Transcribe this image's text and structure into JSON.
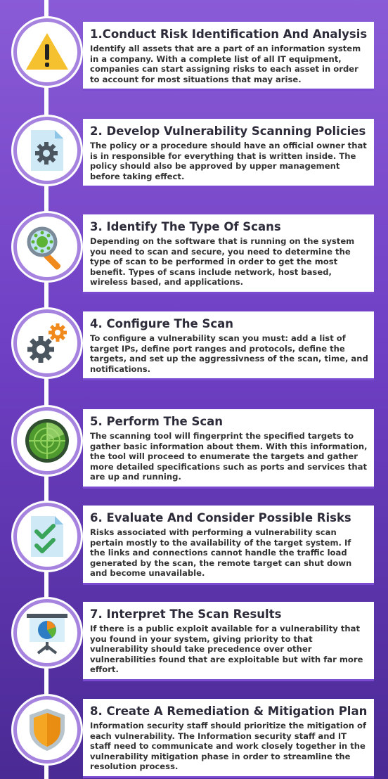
{
  "steps": [
    {
      "title": "1.Conduct Risk Identification And Analysis",
      "body": "Identify all assets that are a part of an information system in a company. With a complete list of all IT equipment, companies can start assigning risks to each asset in order to account for most situations that may arise.",
      "icon": "warning-icon"
    },
    {
      "title": "2. Develop Vulnerability Scanning Policies",
      "body": "The policy or a procedure should have an official owner that is in responsible for everything that is written inside. The policy should also be approved by upper management before taking effect.",
      "icon": "document-gear-icon"
    },
    {
      "title": "3. Identify The Type Of Scans",
      "body": "Depending on the software that is running on the system you need to scan and secure, you need to determine the type of scan to be performed in order to get the most benefit. Types of scans include network, host based, wireless based, and applications.",
      "icon": "magnifier-virus-icon"
    },
    {
      "title": "4. Configure The Scan",
      "body": "To configure a vulnerability scan you must: add a list of target IPs, define port ranges and protocols, define the targets, and set up the aggressivness of the scan, time, and notifications.",
      "icon": "gears-icon"
    },
    {
      "title": "5. Perform The Scan",
      "body": "The scanning tool will fingerprint the specified targets to gather basic information about them. With this information, the tool will proceed to enumerate the targets and gather more detailed specifications such as ports and services that are up and running.",
      "icon": "radar-icon"
    },
    {
      "title": "6. Evaluate And Consider Possible Risks",
      "body": "Risks associated with performing a vulnerability scan pertain mostly to the availability of the target system. If the links and connections cannot handle the traffic load generated by the scan, the remote target can shut down and become unavailable.",
      "icon": "checklist-icon"
    },
    {
      "title": "7. Interpret The Scan Results",
      "body": "If there is a public exploit available for a vulnerability that you found in your system, giving priority to that vulnerability should take precedence over other vulnerabilities found that are exploitable but with far more effort.",
      "icon": "presentation-chart-icon"
    },
    {
      "title": "8. Create A Remediation & Mitigation Plan",
      "body": "Information security staff should prioritize the mitigation of each vulnerability. The Information security staff and IT staff need to communicate and work closely together in the vulnerability mitigation phase in order to streamline the resolution process.",
      "icon": "shield-icon"
    }
  ]
}
